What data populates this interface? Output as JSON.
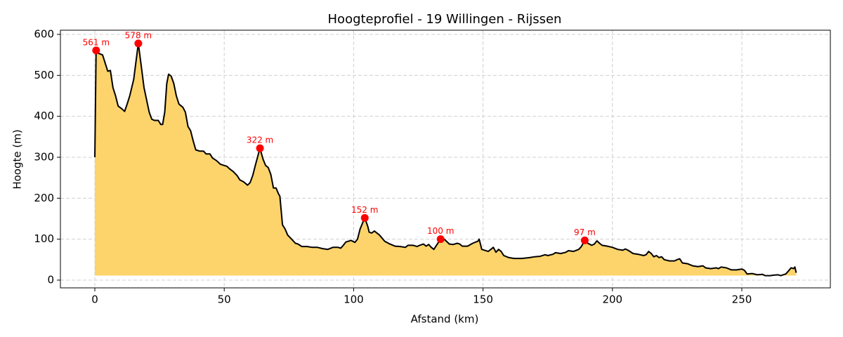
{
  "chart_data": {
    "type": "area",
    "title": "Hoogteprofiel - 19 Willingen - Rijssen",
    "x_label": "Afstand (km)",
    "y_label": "Hoogte (m)",
    "xlim": [
      -13.3,
      284.2
    ],
    "ylim": [
      -18.9,
      610.3
    ],
    "xticks": [
      0,
      50,
      100,
      150,
      200,
      250
    ],
    "yticks": [
      0,
      100,
      200,
      300,
      400,
      500,
      600
    ],
    "grid": true,
    "series": [
      {
        "color": "#000000",
        "fill_color": "#fcd46b",
        "x": [
          0,
          0.5,
          1,
          3,
          4,
          5,
          6,
          7,
          8,
          9,
          10.5,
          11.5,
          12.5,
          13.5,
          15,
          16.8,
          18,
          19,
          20,
          21,
          22,
          23,
          24.5,
          25.5,
          26.2,
          27,
          27.8,
          28.5,
          29.5,
          30.5,
          31.5,
          32.5,
          34,
          35,
          36,
          37,
          38,
          39,
          40.5,
          42,
          43,
          44.5,
          45.5,
          47,
          48.5,
          50,
          51,
          52,
          53.5,
          55,
          56,
          57.5,
          59,
          60,
          61,
          62,
          63.8,
          65,
          66,
          67,
          68,
          69,
          70,
          71,
          71.5,
          72.5,
          73.5,
          74.5,
          76,
          77.5,
          78.5,
          80,
          82,
          84,
          86,
          88,
          90,
          92,
          94,
          95,
          96,
          97,
          99,
          100.5,
          101.5,
          102.5,
          104.3,
          105.5,
          106,
          107,
          108,
          110,
          112,
          114,
          116,
          118,
          120,
          121,
          123,
          124.5,
          125.5,
          127,
          128,
          129,
          130,
          131,
          132,
          133.6,
          135,
          137,
          138.5,
          140,
          141,
          142,
          144,
          146,
          148,
          148.5,
          149.5,
          152,
          153,
          154,
          155,
          156,
          157,
          158,
          160,
          162,
          165,
          168,
          170,
          172,
          174,
          175,
          177,
          178,
          180,
          182,
          183,
          185,
          187,
          188,
          189.3,
          190.5,
          192,
          193,
          194,
          195,
          196,
          198,
          200,
          202,
          204,
          205,
          206,
          208,
          210,
          212,
          213,
          214,
          215,
          216,
          217,
          218,
          219,
          220,
          222,
          224,
          225,
          226,
          227,
          229,
          231,
          233,
          235,
          236,
          238,
          240,
          241,
          242,
          244,
          246,
          248,
          250,
          251,
          252,
          254,
          256,
          258,
          259,
          261,
          262,
          264,
          265,
          267,
          268,
          269,
          270,
          270.5,
          271
        ],
        "values": [
          300,
          561,
          555,
          550,
          530,
          510,
          512,
          470,
          450,
          425,
          418,
          412,
          430,
          450,
          490,
          578,
          520,
          470,
          440,
          410,
          393,
          390,
          390,
          380,
          380,
          410,
          480,
          503,
          498,
          480,
          450,
          430,
          422,
          410,
          375,
          365,
          340,
          318,
          315,
          315,
          308,
          308,
          298,
          292,
          283,
          280,
          278,
          272,
          265,
          255,
          245,
          240,
          232,
          238,
          255,
          280,
          322,
          295,
          280,
          275,
          258,
          225,
          225,
          210,
          205,
          135,
          125,
          110,
          100,
          90,
          88,
          82,
          82,
          80,
          80,
          77,
          75,
          80,
          80,
          78,
          85,
          93,
          97,
          92,
          100,
          125,
          152,
          130,
          117,
          115,
          120,
          110,
          95,
          88,
          83,
          82,
          80,
          85,
          85,
          82,
          85,
          88,
          83,
          87,
          80,
          75,
          85,
          100,
          100,
          88,
          87,
          90,
          88,
          83,
          83,
          90,
          95,
          100,
          75,
          70,
          75,
          80,
          68,
          75,
          70,
          60,
          55,
          53,
          53,
          55,
          57,
          58,
          62,
          60,
          63,
          67,
          65,
          68,
          72,
          70,
          75,
          82,
          97,
          90,
          85,
          88,
          96,
          90,
          85,
          83,
          80,
          75,
          73,
          76,
          73,
          65,
          63,
          60,
          62,
          70,
          65,
          57,
          60,
          55,
          57,
          50,
          47,
          47,
          50,
          52,
          42,
          40,
          35,
          33,
          35,
          30,
          28,
          30,
          28,
          32,
          30,
          25,
          25,
          27,
          24,
          15,
          16,
          13,
          14,
          11,
          11,
          12,
          13,
          11,
          15,
          22,
          30,
          28,
          32,
          18
        ]
      }
    ],
    "peaks": {
      "color": "#ff0000",
      "x": [
        0.5,
        16.8,
        63.8,
        104.3,
        133.6,
        189.3
      ],
      "values": [
        561,
        578,
        322,
        152,
        100,
        97
      ],
      "value_labels": [
        "561 m",
        "578 m",
        "322 m",
        "152 m",
        "100 m",
        "97 m"
      ]
    }
  }
}
